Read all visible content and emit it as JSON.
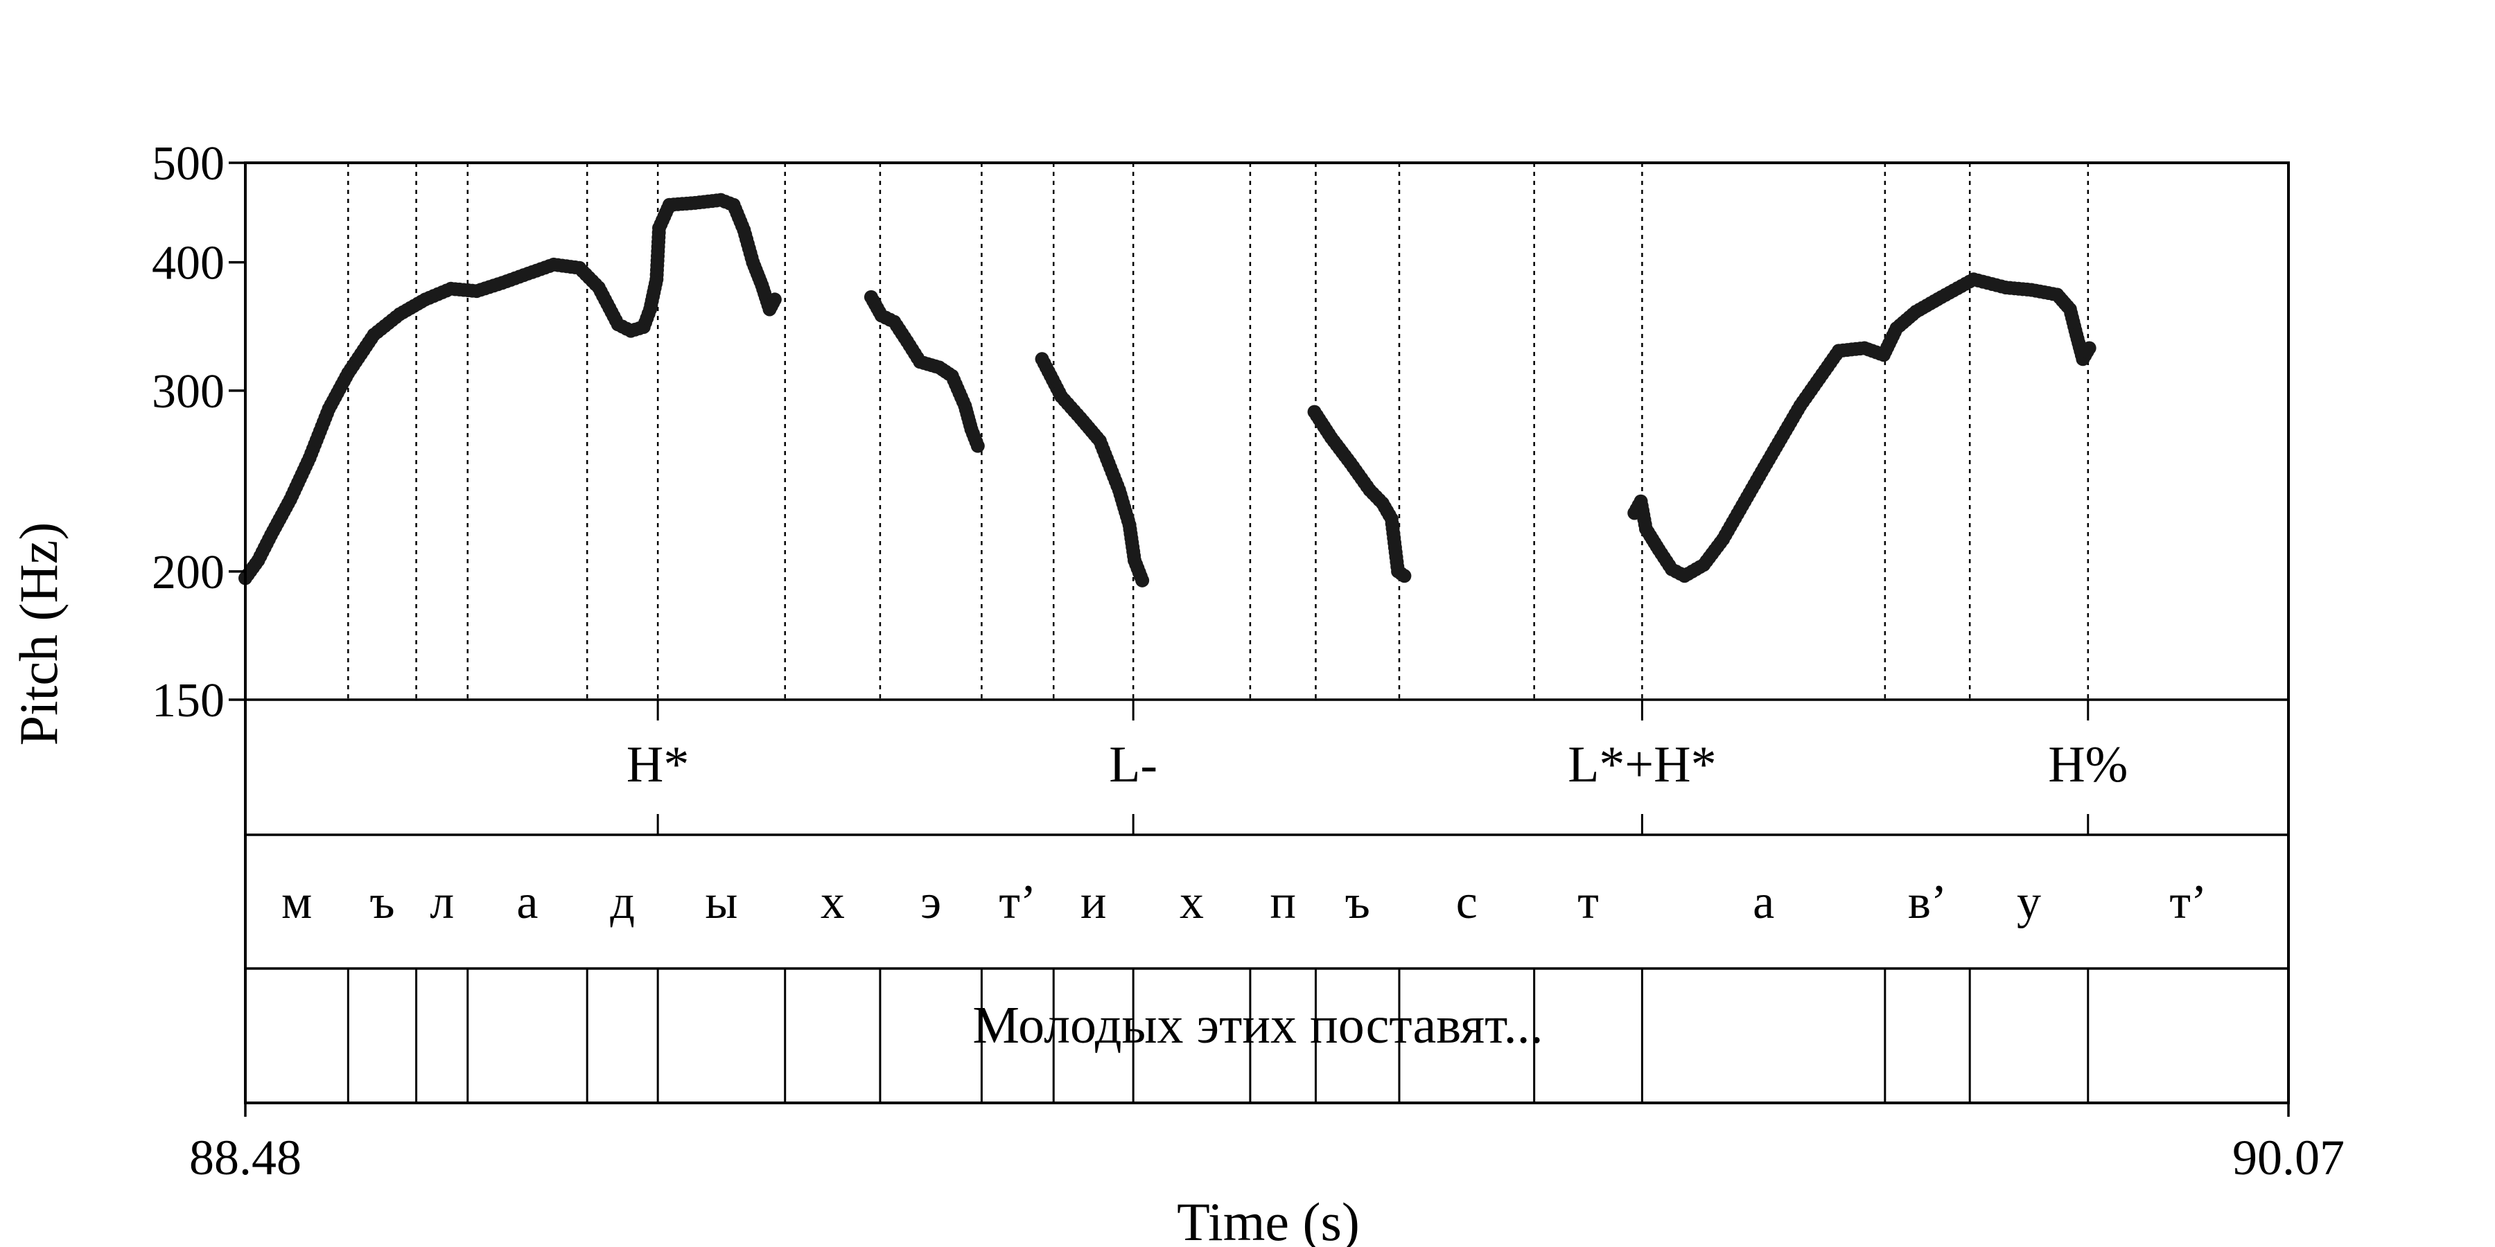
{
  "chart_data": {
    "type": "scatter",
    "xlabel": "Time (s)",
    "ylabel": "Pitch (Hz)",
    "xlim": [
      88.48,
      90.07
    ],
    "ylim": [
      150,
      500
    ],
    "yscale": "log",
    "x_tick_labels": [
      "88.48",
      "90.07"
    ],
    "yticks": [
      150,
      200,
      300,
      400,
      500
    ],
    "boundaries": [
      88.56,
      88.613,
      88.653,
      88.746,
      88.801,
      88.9,
      88.974,
      89.053,
      89.109,
      89.171,
      89.262,
      89.313,
      89.378,
      89.483,
      89.567,
      89.756,
      89.822,
      89.914
    ],
    "tones": [
      {
        "time": 88.801,
        "label": "H*"
      },
      {
        "time": 89.171,
        "label": "L-"
      },
      {
        "time": 89.567,
        "label": "L*+H*"
      },
      {
        "time": 89.914,
        "label": "H%"
      }
    ],
    "segments": [
      "м",
      "ъ",
      "л",
      "а",
      "д",
      "ы",
      "х",
      "э",
      "т’",
      "и",
      "х",
      "п",
      "ъ",
      "с",
      "т",
      "а",
      "в’",
      "у",
      "т’"
    ],
    "phrase": "Молодых этих поставят...",
    "pitch_contours": [
      {
        "x": [
          88.48,
          88.49,
          88.5,
          88.515,
          88.53,
          88.545,
          88.56,
          88.58,
          88.6,
          88.62,
          88.64,
          88.66,
          88.68,
          88.7,
          88.72,
          88.74,
          88.755,
          88.77,
          88.78,
          88.79,
          88.795,
          88.8,
          88.802,
          88.81,
          88.83,
          88.85,
          88.86,
          88.868,
          88.875,
          88.882,
          88.888,
          88.892
        ],
        "y": [
          197,
          205,
          217,
          235,
          258,
          288,
          312,
          340,
          356,
          368,
          377,
          375,
          382,
          390,
          398,
          395,
          378,
          348,
          343,
          346,
          360,
          385,
          432,
          455,
          457,
          460,
          455,
          430,
          400,
          380,
          360,
          368
        ]
      },
      {
        "x": [
          88.967,
          88.975,
          88.985,
          88.995,
          89.005,
          89.02,
          89.03,
          89.04,
          89.045,
          89.05
        ],
        "y": [
          370,
          355,
          350,
          335,
          320,
          316,
          310,
          290,
          275,
          265
        ]
      },
      {
        "x": [
          89.1,
          89.115,
          89.13,
          89.145,
          89.16,
          89.168,
          89.172,
          89.178
        ],
        "y": [
          322,
          296,
          282,
          268,
          240,
          222,
          205,
          196
        ]
      },
      {
        "x": [
          89.312,
          89.325,
          89.34,
          89.355,
          89.365,
          89.372,
          89.377,
          89.382
        ],
        "y": [
          286,
          270,
          255,
          240,
          233,
          225,
          200,
          198
        ]
      },
      {
        "x": [
          89.561,
          89.566,
          89.57,
          89.58,
          89.59,
          89.6,
          89.615,
          89.63,
          89.66,
          89.69,
          89.72,
          89.74,
          89.755,
          89.765,
          89.78,
          89.8,
          89.825,
          89.85,
          89.87,
          89.89,
          89.9,
          89.905,
          89.91,
          89.915
        ],
        "y": [
          228,
          234,
          220,
          210,
          201,
          198,
          203,
          215,
          250,
          290,
          328,
          330,
          325,
          345,
          358,
          370,
          385,
          378,
          376,
          372,
          360,
          340,
          322,
          330
        ]
      }
    ]
  }
}
